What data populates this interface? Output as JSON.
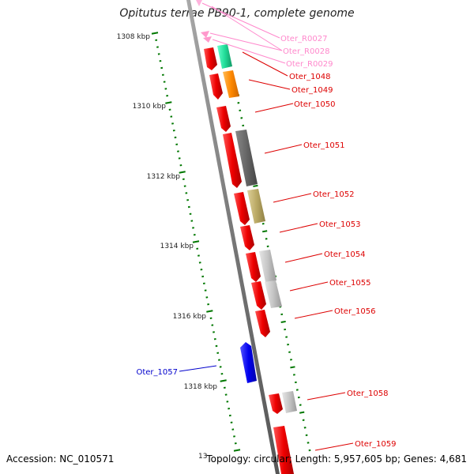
{
  "title": "Opitutus terrae PB90-1, complete genome",
  "accession": "Accession: NC_010571",
  "topology": "Topology: circular; Length: 5,957,605 bp; Genes: 4,681",
  "colors": {
    "backbone": "#808080",
    "cds": "#ff0000",
    "rna": "#ff99cc",
    "tick": "#007700",
    "blue": "#0000ff"
  },
  "scale_labels": [
    {
      "text": "1308 kbp",
      "pos": 1308
    },
    {
      "text": "1310 kbp",
      "pos": 1310
    },
    {
      "text": "1312 kbp",
      "pos": 1312
    },
    {
      "text": "1314 kbp",
      "pos": 1314
    },
    {
      "text": "1316 kbp",
      "pos": 1316
    },
    {
      "text": "1318 kbp",
      "pos": 1318
    }
  ],
  "partial_scale_label": "13",
  "gene_labels": [
    {
      "text": "Oter_R0027",
      "color": "#ff88cc"
    },
    {
      "text": "Oter_R0028",
      "color": "#ff88cc"
    },
    {
      "text": "Oter_R0029",
      "color": "#ff88cc"
    },
    {
      "text": "Oter_1048",
      "color": "#dd0000"
    },
    {
      "text": "Oter_1049",
      "color": "#dd0000"
    },
    {
      "text": "Oter_1050",
      "color": "#dd0000"
    },
    {
      "text": "Oter_1051",
      "color": "#dd0000"
    },
    {
      "text": "Oter_1052",
      "color": "#dd0000"
    },
    {
      "text": "Oter_1053",
      "color": "#dd0000"
    },
    {
      "text": "Oter_1054",
      "color": "#dd0000"
    },
    {
      "text": "Oter_1055",
      "color": "#dd0000"
    },
    {
      "text": "Oter_1056",
      "color": "#dd0000"
    },
    {
      "text": "Oter_1057",
      "color": "#0000cc"
    },
    {
      "text": "Oter_1058",
      "color": "#dd0000"
    },
    {
      "text": "Oter_1059",
      "color": "#dd0000"
    }
  ]
}
